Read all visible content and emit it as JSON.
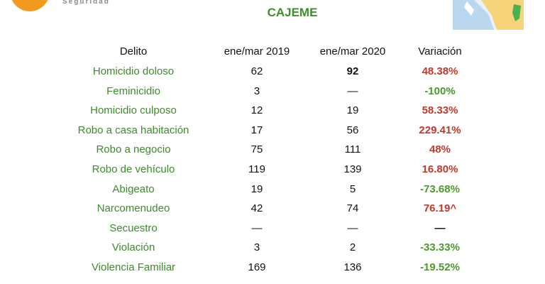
{
  "header": {
    "logo_text": "Seguridad",
    "title": "CAJEME"
  },
  "table": {
    "columns": [
      "Delito",
      "ene/mar 2019",
      "ene/mar 2020",
      "Variación"
    ],
    "rows": [
      [
        "Homicidio doloso",
        "62",
        "92",
        "48.38%"
      ],
      [
        "Feminicidio",
        "3",
        "—",
        "-100%"
      ],
      [
        "Homicidio culposo",
        "12",
        "19",
        "58.33%"
      ],
      [
        "Robo a casa habitación",
        "17",
        "56",
        "229.41%"
      ],
      [
        "Robo a negocio",
        "75",
        "111",
        "48%"
      ],
      [
        "Robo de vehículo",
        "119",
        "139",
        "16.80%"
      ],
      [
        "Abigeato",
        "19",
        "5",
        "-73.68%"
      ],
      [
        "Narcomenudeo",
        "42",
        "74",
        "76.19^"
      ],
      [
        "Secuestro",
        "—",
        "—",
        "—"
      ],
      [
        "Violación",
        "3",
        "2",
        "-33.33%"
      ],
      [
        "Violencia Familiar",
        "169",
        "136",
        "-19.52%"
      ]
    ]
  }
}
